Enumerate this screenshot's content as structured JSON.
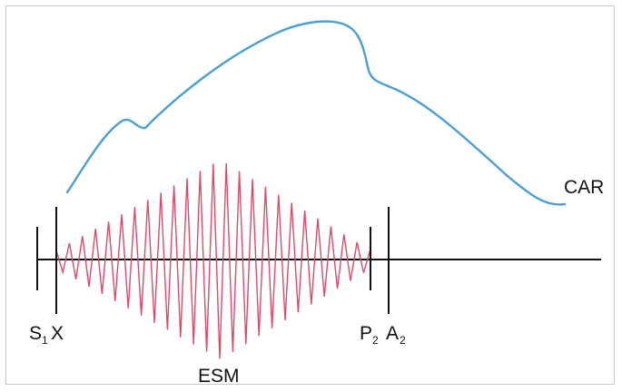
{
  "labels": {
    "car": "CAR",
    "esm": "ESM",
    "s1": "S",
    "s1_sub": "1",
    "x": "X",
    "p2": "P",
    "p2_sub": "2",
    "a2": "A",
    "a2_sub": "2"
  },
  "colors": {
    "carotid_trace": "#4a9fd4",
    "murmur": "#e0486a",
    "baseline": "#111111",
    "frame": "#c9c9c9"
  }
}
